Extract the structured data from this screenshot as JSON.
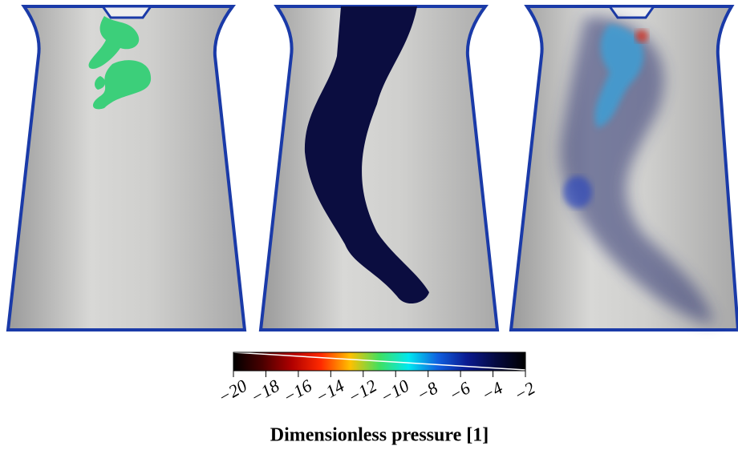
{
  "chart_data": {
    "type": "colorbar",
    "title": "Dimensionless pressure [1]",
    "xlim": [
      -20,
      -2
    ],
    "xticks": [
      {
        "value": -20,
        "label": "−20"
      },
      {
        "value": -18,
        "label": "−18"
      },
      {
        "value": -16,
        "label": "−16"
      },
      {
        "value": -14,
        "label": "−14"
      },
      {
        "value": -12,
        "label": "−12"
      },
      {
        "value": -10,
        "label": "−10"
      },
      {
        "value": -8,
        "label": "−8"
      },
      {
        "value": -6,
        "label": "−6"
      },
      {
        "value": -4,
        "label": "−4"
      },
      {
        "value": -2,
        "label": "−2"
      }
    ],
    "colormap": [
      "#000000",
      "#4a0000",
      "#b00000",
      "#ff2a00",
      "#ffc000",
      "#40e060",
      "#00e8f0",
      "#1060e0",
      "#0a1a90",
      "#050a40",
      "#000000"
    ]
  }
}
